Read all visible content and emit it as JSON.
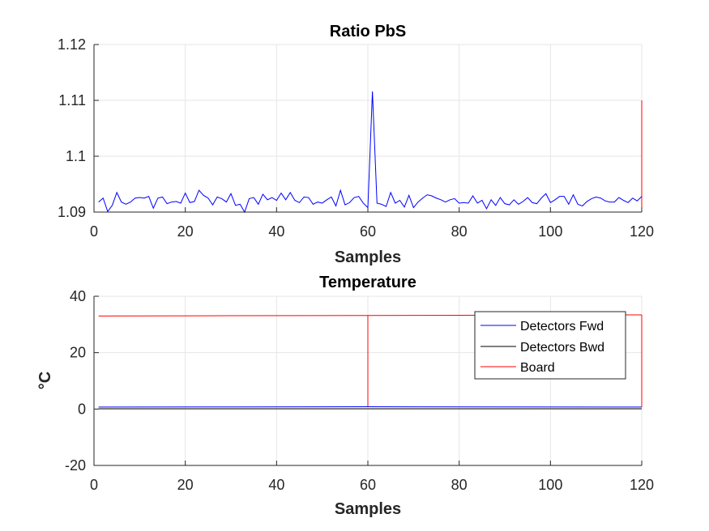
{
  "chart_data": [
    {
      "type": "line",
      "title": "Ratio PbS",
      "xlabel": "Samples",
      "ylabel": "",
      "xlim": [
        0,
        120
      ],
      "ylim": [
        1.09,
        1.12
      ],
      "x_ticks": [
        "0",
        "20",
        "40",
        "60",
        "80",
        "100",
        "120"
      ],
      "y_ticks": [
        "1.09",
        "1.1",
        "1.11",
        "1.12"
      ],
      "grid": true,
      "series": [
        {
          "color": "#0000ff",
          "x": [
            1,
            2,
            3,
            4,
            5,
            6,
            7,
            8,
            9,
            10,
            11,
            12,
            13,
            14,
            15,
            16,
            17,
            18,
            19,
            20,
            21,
            22,
            23,
            24,
            25,
            26,
            27,
            28,
            29,
            30,
            31,
            32,
            33,
            34,
            35,
            36,
            37,
            38,
            39,
            40,
            41,
            42,
            43,
            44,
            45,
            46,
            47,
            48,
            49,
            50,
            51,
            52,
            53,
            54,
            55,
            56,
            57,
            58,
            59,
            60,
            61,
            62,
            63,
            64,
            65,
            66,
            67,
            68,
            69,
            70,
            71,
            72,
            73,
            74,
            75,
            76,
            77,
            78,
            79,
            80,
            81,
            82,
            83,
            84,
            85,
            86,
            87,
            88,
            89,
            90,
            91,
            92,
            93,
            94,
            95,
            96,
            97,
            98,
            99,
            100,
            101,
            102,
            103,
            104,
            105,
            106,
            107,
            108,
            109,
            110,
            111,
            112,
            113,
            114,
            115,
            116,
            117,
            118,
            119,
            120
          ],
          "values": [
            1.0918,
            1.0925,
            1.0901,
            1.0912,
            1.0935,
            1.0918,
            1.0914,
            1.0918,
            1.0925,
            1.0926,
            1.0925,
            1.0928,
            1.0907,
            1.0925,
            1.0927,
            1.0915,
            1.0918,
            1.0919,
            1.0916,
            1.0934,
            1.0917,
            1.0919,
            1.0939,
            1.093,
            1.0925,
            1.0913,
            1.0927,
            1.0924,
            1.0918,
            1.0933,
            1.0912,
            1.0914,
            1.09,
            1.0924,
            1.0926,
            1.0914,
            1.0932,
            1.0922,
            1.0926,
            1.0921,
            1.0934,
            1.0922,
            1.0935,
            1.0921,
            1.0917,
            1.0927,
            1.0926,
            1.0914,
            1.0918,
            1.0916,
            1.0922,
            1.0927,
            1.0911,
            1.0939,
            1.0913,
            1.0917,
            1.0926,
            1.0928,
            1.0916,
            1.0908,
            1.1116,
            1.0916,
            1.0914,
            1.091,
            1.0935,
            1.0916,
            1.0921,
            1.0909,
            1.093,
            1.0908,
            1.0918,
            1.0925,
            1.0931,
            1.0929,
            1.0925,
            1.0922,
            1.0918,
            1.0922,
            1.0924,
            1.0916,
            1.0917,
            1.0916,
            1.0929,
            1.0916,
            1.0921,
            1.0906,
            1.0922,
            1.0912,
            1.0926,
            1.0915,
            1.0913,
            1.0922,
            1.0914,
            1.0919,
            1.0926,
            1.0917,
            1.0915,
            1.0925,
            1.0933,
            1.0917,
            1.0922,
            1.0928,
            1.0928,
            1.0914,
            1.0931,
            1.0914,
            1.0911,
            1.0919,
            1.0924,
            1.0927,
            1.0925,
            1.092,
            1.0918,
            1.0918,
            1.0926,
            1.0921,
            1.0917,
            1.0925,
            1.092,
            1.0928
          ]
        }
      ],
      "vlines": [
        {
          "x": 120,
          "y_from": 1.09,
          "y_to": 1.11,
          "color": "#ff0000"
        }
      ]
    },
    {
      "type": "line",
      "title": "Temperature",
      "xlabel": "Samples",
      "ylabel": "°C",
      "xlim": [
        0,
        120
      ],
      "ylim": [
        -20,
        40
      ],
      "x_ticks": [
        "0",
        "20",
        "40",
        "60",
        "80",
        "100",
        "120"
      ],
      "y_ticks": [
        "-20",
        "0",
        "20",
        "40"
      ],
      "grid": true,
      "legend_position": "top-right",
      "series": [
        {
          "name": "Detectors Fwd",
          "color": "#0000ff",
          "x": [
            1,
            30,
            60,
            90,
            120
          ],
          "values": [
            0.7,
            0.75,
            0.8,
            0.75,
            0.7
          ]
        },
        {
          "name": "Detectors Bwd",
          "color": "#000000",
          "x": [
            1,
            30,
            60,
            90,
            120
          ],
          "values": [
            0.1,
            0.1,
            0.1,
            0.1,
            0.1
          ]
        },
        {
          "name": "Board",
          "color": "#ff0000",
          "x": [
            1,
            30,
            60,
            90,
            120
          ],
          "values": [
            33.0,
            33.1,
            33.2,
            33.3,
            33.4
          ]
        }
      ],
      "vlines": [
        {
          "x": 60,
          "y_from": 0.8,
          "y_to": 33.2,
          "color": "#ff0000"
        },
        {
          "x": 120,
          "y_from": 0.7,
          "y_to": 33.4,
          "color": "#ff0000"
        }
      ]
    }
  ]
}
